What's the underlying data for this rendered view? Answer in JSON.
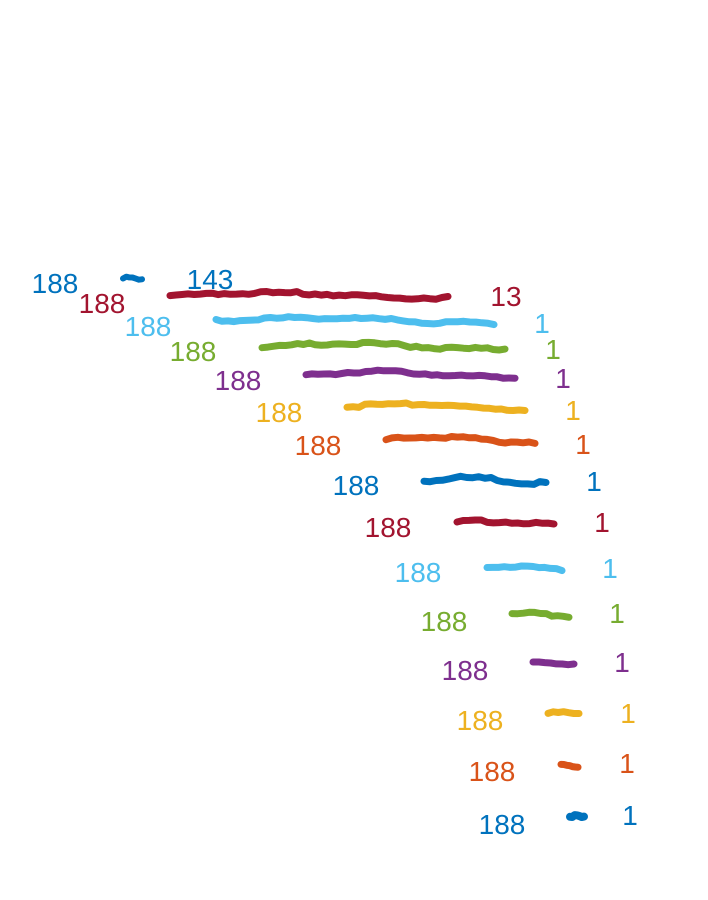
{
  "chart_data": {
    "type": "line",
    "title": "",
    "xlabel": "",
    "ylabel": "",
    "grid": false,
    "axes_visible": false,
    "series": [
      {
        "start_label": "188",
        "end_label": "143",
        "color": "#0072BD"
      },
      {
        "start_label": "188",
        "end_label": "13",
        "color": "#A2142F"
      },
      {
        "start_label": "188",
        "end_label": "1",
        "color": "#4DBEEE"
      },
      {
        "start_label": "188",
        "end_label": "1",
        "color": "#77AC30"
      },
      {
        "start_label": "188",
        "end_label": "1",
        "color": "#7E2F8E"
      },
      {
        "start_label": "188",
        "end_label": "1",
        "color": "#EDB120"
      },
      {
        "start_label": "188",
        "end_label": "1",
        "color": "#D95319"
      },
      {
        "start_label": "188",
        "end_label": "1",
        "color": "#0072BD"
      },
      {
        "start_label": "188",
        "end_label": "1",
        "color": "#A2142F"
      },
      {
        "start_label": "188",
        "end_label": "1",
        "color": "#4DBEEE"
      },
      {
        "start_label": "188",
        "end_label": "1",
        "color": "#77AC30"
      },
      {
        "start_label": "188",
        "end_label": "1",
        "color": "#7E2F8E"
      },
      {
        "start_label": "188",
        "end_label": "1",
        "color": "#EDB120"
      },
      {
        "start_label": "188",
        "end_label": "1",
        "color": "#D95319"
      },
      {
        "start_label": "188",
        "end_label": "1",
        "color": "#0072BD"
      }
    ]
  }
}
